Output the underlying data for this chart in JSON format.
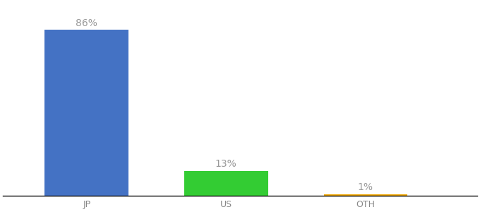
{
  "categories": [
    "JP",
    "US",
    "OTH"
  ],
  "values": [
    86,
    13,
    1
  ],
  "bar_colors": [
    "#4472c4",
    "#33cc33",
    "#f0a500"
  ],
  "value_labels": [
    "86%",
    "13%",
    "1%"
  ],
  "label_color": "#999999",
  "background_color": "#ffffff",
  "ylim": [
    0,
    100
  ],
  "bar_width": 0.6,
  "label_fontsize": 10,
  "tick_fontsize": 9,
  "x_positions": [
    1,
    2,
    3
  ]
}
